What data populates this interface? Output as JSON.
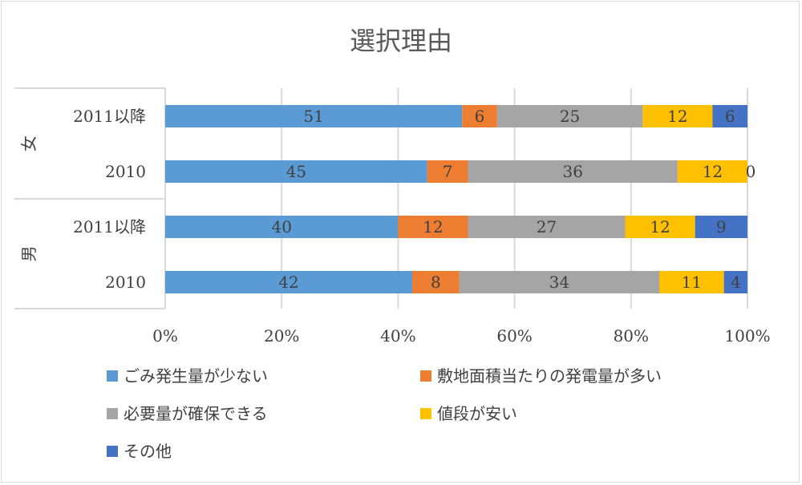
{
  "chart_data": {
    "type": "bar",
    "orientation": "horizontal",
    "stacking": "percent",
    "title": "選択理由",
    "groups": [
      {
        "label": "女",
        "rows": [
          {
            "label": "2011以降",
            "values": [
              51,
              6,
              25,
              12,
              6
            ]
          },
          {
            "label": "2010",
            "values": [
              45,
              7,
              36,
              12,
              0
            ]
          }
        ]
      },
      {
        "label": "男",
        "rows": [
          {
            "label": "2011以降",
            "values": [
              40,
              12,
              27,
              12,
              9
            ]
          },
          {
            "label": "2010",
            "values": [
              42,
              8,
              34,
              11,
              4
            ]
          }
        ]
      }
    ],
    "series": [
      {
        "name": "ごみ発生量が少ない",
        "color": "#5b9bd5"
      },
      {
        "name": "敷地面積当たりの発電量が多い",
        "color": "#ed7d31"
      },
      {
        "name": "必要量が確保できる",
        "color": "#a5a5a5"
      },
      {
        "name": "値段が安い",
        "color": "#ffc000"
      },
      {
        "name": "その他",
        "color": "#4472c4"
      }
    ],
    "xticks": [
      "0%",
      "20%",
      "40%",
      "60%",
      "80%",
      "100%"
    ],
    "xlim": [
      0,
      100
    ],
    "grid": true,
    "legend_position": "bottom"
  }
}
